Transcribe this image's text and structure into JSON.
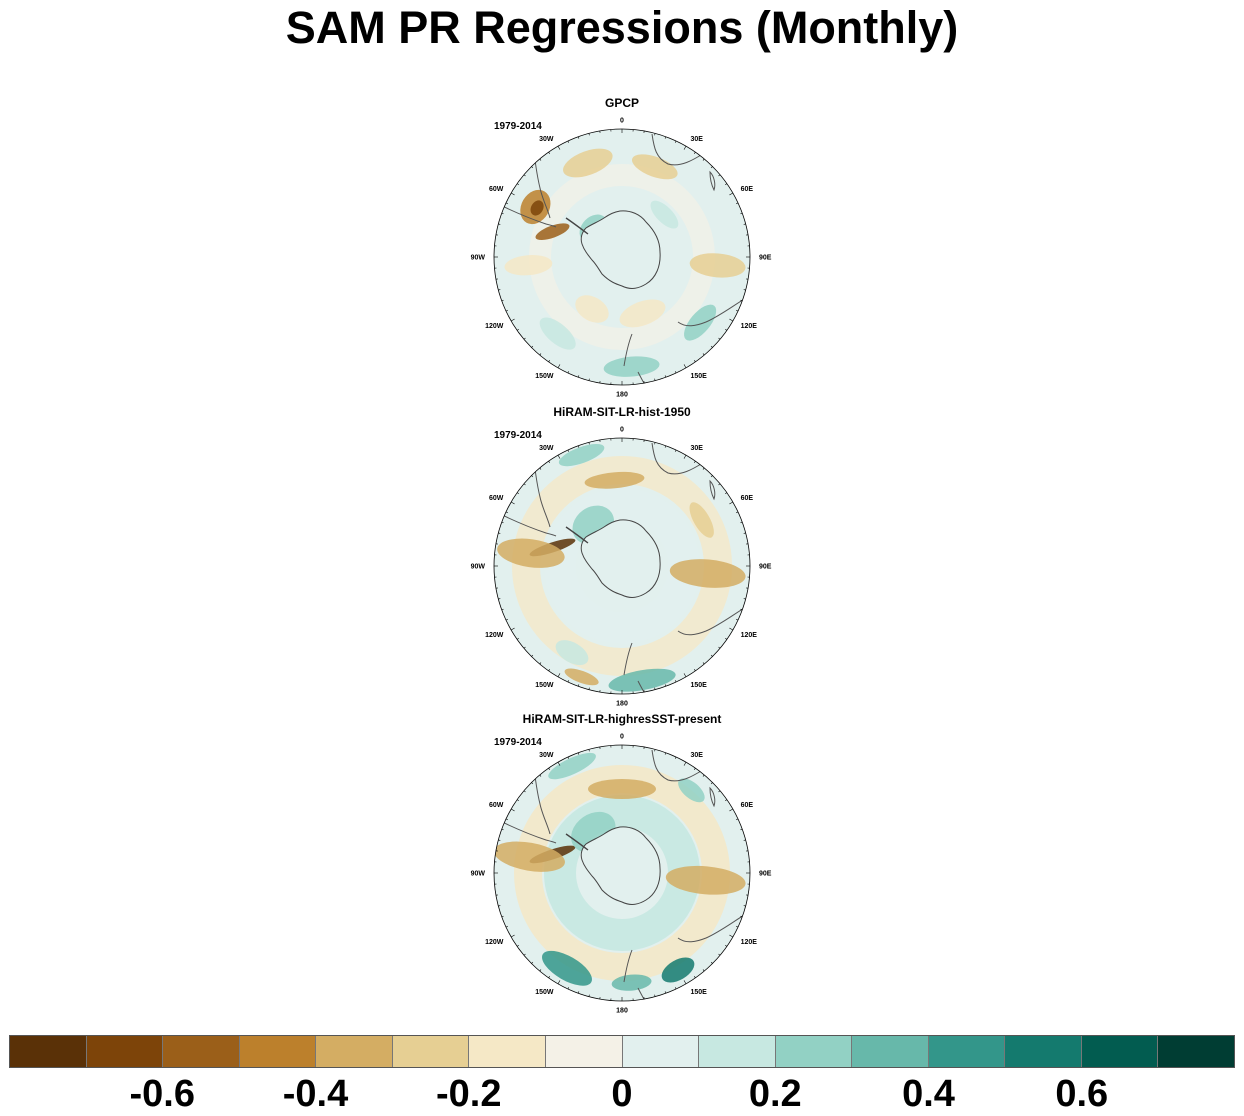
{
  "title": "SAM PR Regressions (Monthly)",
  "panels": [
    {
      "name": "GPCP",
      "period": "1979-2014"
    },
    {
      "name": "HiRAM-SIT-LR-hist-1950",
      "period": "1979-2014"
    },
    {
      "name": "HiRAM-SIT-LR-highresSST-present",
      "period": "1979-2014"
    }
  ],
  "longitude_labels": [
    "0",
    "30E",
    "60E",
    "90E",
    "120E",
    "150E",
    "180",
    "150W",
    "120W",
    "90W",
    "60W",
    "30W"
  ],
  "colorbar": {
    "colors": [
      "#5a3107",
      "#7d4409",
      "#9b5f19",
      "#bc802c",
      "#d4ad63",
      "#e6cf93",
      "#f5e8c6",
      "#f4f1e7",
      "#e2f0ee",
      "#c7e8e1",
      "#92d1c4",
      "#67b8aa",
      "#33968a",
      "#147a6e",
      "#025c50",
      "#003d33"
    ],
    "tick_labels": [
      "-0.6",
      "-0.4",
      "-0.2",
      "0",
      "0.2",
      "0.4",
      "0.6"
    ]
  },
  "chart_data": {
    "type": "map",
    "projection": "south-polar-stereographic",
    "variable": "precipitation regression on SAM index",
    "levels": [
      -0.7,
      -0.6,
      -0.5,
      -0.4,
      -0.3,
      -0.2,
      -0.1,
      -0.05,
      0.05,
      0.1,
      0.2,
      0.3,
      0.4,
      0.5,
      0.6,
      0.7
    ],
    "panels": [
      "GPCP",
      "HiRAM-SIT-LR-hist-1950",
      "HiRAM-SIT-LR-highresSST-present"
    ]
  }
}
